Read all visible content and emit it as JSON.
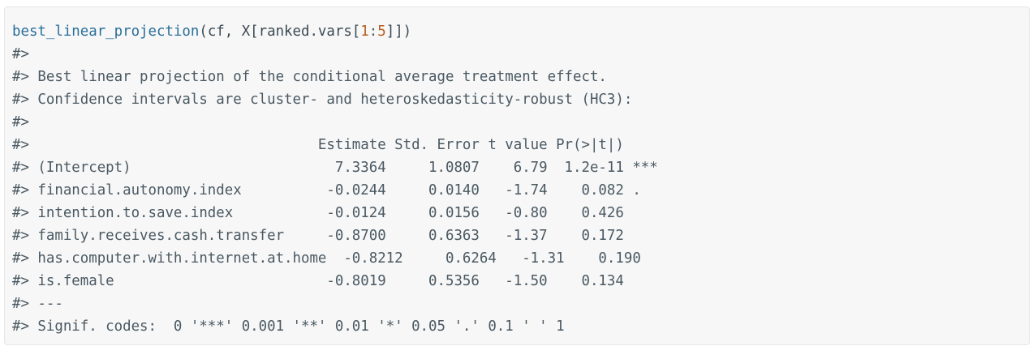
{
  "code": {
    "function_name": "best_linear_projection",
    "args_part1": "(cf, X[ranked.vars[",
    "range_start": "1",
    "range_sep": ":",
    "range_end": "5",
    "args_part2": "]])"
  },
  "output_lines": [
    "#>",
    "#> Best linear projection of the conditional average treatment effect.",
    "#> Confidence intervals are cluster- and heteroskedasticity-robust (HC3):",
    "#>",
    "#>                                  Estimate Std. Error t value Pr(>|t|)",
    "#> (Intercept)                        7.3364     1.0807    6.79  1.2e-11 ***",
    "#> financial.autonomy.index          -0.0244     0.0140   -1.74    0.082 .",
    "#> intention.to.save.index           -0.0124     0.0156   -0.80    0.426",
    "#> family.receives.cash.transfer     -0.8700     0.6363   -1.37    0.172",
    "#> has.computer.with.internet.at.home  -0.8212     0.6264   -1.31    0.190",
    "#> is.female                         -0.8019     0.5356   -1.50    0.134",
    "#> ---",
    "#> Signif. codes:  0 '***' 0.001 '**' 0.01 '*' 0.05 '.' 0.1 ' ' 1"
  ]
}
